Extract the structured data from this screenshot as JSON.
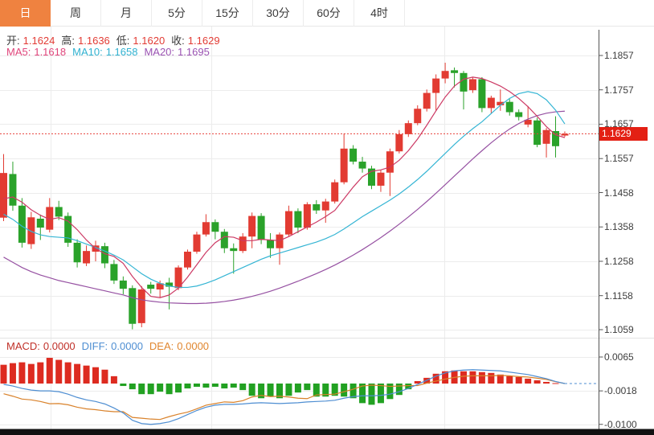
{
  "tabs": {
    "items": [
      {
        "label": "日",
        "active": true
      },
      {
        "label": "周",
        "active": false
      },
      {
        "label": "月",
        "active": false
      },
      {
        "label": "5分",
        "active": false
      },
      {
        "label": "15分",
        "active": false
      },
      {
        "label": "30分",
        "active": false
      },
      {
        "label": "60分",
        "active": false
      },
      {
        "label": "4时",
        "active": false
      }
    ],
    "active_bg": "#ef8240"
  },
  "ohlc_info": {
    "label_color": "#3a3a3a",
    "value_color": "#e23b34",
    "pairs": [
      {
        "label": "开:",
        "value": "1.1624"
      },
      {
        "label": "高:",
        "value": "1.1636"
      },
      {
        "label": "低:",
        "value": "1.1620"
      },
      {
        "label": "收:",
        "value": "1.1629"
      }
    ]
  },
  "ma_info": [
    {
      "label": "MA5:",
      "value": "1.1618",
      "color": "#e0457b"
    },
    {
      "label": "MA10:",
      "value": "1.1658",
      "color": "#2fb1d0"
    },
    {
      "label": "MA20:",
      "value": "1.1695",
      "color": "#9a52b2"
    }
  ],
  "macd_info": [
    {
      "label": "MACD:",
      "value": "0.0000",
      "color": "#c03028"
    },
    {
      "label": "DIFF:",
      "value": "0.0000",
      "color": "#4e8ed2"
    },
    {
      "label": "DEA:",
      "value": "0.0000",
      "color": "#e0862f"
    }
  ],
  "current_price": {
    "value": "1.1629",
    "box_color": "#e32014",
    "line_color": "#e8413a"
  },
  "price_axis": {
    "ticks": [
      {
        "label": "1.1857",
        "price": 1.1857
      },
      {
        "label": "1.1757",
        "price": 1.1757
      },
      {
        "label": "1.1657",
        "price": 1.1657
      },
      {
        "label": "1.1557",
        "price": 1.1557
      },
      {
        "label": "1.1458",
        "price": 1.1458
      },
      {
        "label": "1.1358",
        "price": 1.1358
      },
      {
        "label": "1.1258",
        "price": 1.1258
      },
      {
        "label": "1.1158",
        "price": 1.1158
      },
      {
        "label": "1.1059",
        "price": 1.1059
      }
    ]
  },
  "macd_axis": {
    "ticks": [
      {
        "label": "0.0065",
        "value": 0.0065
      },
      {
        "label": "-0.0018",
        "value": -0.0018
      },
      {
        "label": "-0.0100",
        "value": -0.01
      }
    ]
  },
  "colors": {
    "up": "#e23b32",
    "down": "#2aa22a",
    "ma5": "#cc3964",
    "ma10": "#35b5d4",
    "ma20": "#9651a2",
    "hist_pos": "#dd2b20",
    "hist_neg": "#22a122",
    "diff_line": "#4e8ed2",
    "dea_line": "#d9822b",
    "grid": "#ececec",
    "axis": "#555555",
    "bottom_strip": "#111111"
  },
  "chart_data": {
    "type": "candlestick",
    "instrument_note": "daily candles with MA5/MA10/MA20 overlay and MACD(12,26,9) sub-chart",
    "price_range": [
      1.1059,
      1.1857
    ],
    "macd_range": [
      -0.01,
      0.0065
    ],
    "last_ohlc": {
      "open": 1.1624,
      "high": 1.1636,
      "low": 1.162,
      "close": 1.1629
    },
    "ma_last": {
      "ma5": 1.1618,
      "ma10": 1.1658,
      "ma20": 1.1695
    },
    "macd_last": {
      "macd": 0.0,
      "diff": 0.0,
      "dea": 0.0
    },
    "candles_ohlc": [
      [
        1.1385,
        1.157,
        1.1375,
        1.1515
      ],
      [
        1.1512,
        1.1548,
        1.1405,
        1.142
      ],
      [
        1.142,
        1.1442,
        1.1298,
        1.1312
      ],
      [
        1.1308,
        1.1402,
        1.1294,
        1.1386
      ],
      [
        1.1382,
        1.1394,
        1.132,
        1.1356
      ],
      [
        1.135,
        1.1442,
        1.1342,
        1.1416
      ],
      [
        1.1416,
        1.1434,
        1.1378,
        1.1388
      ],
      [
        1.139,
        1.14,
        1.13,
        1.1312
      ],
      [
        1.1312,
        1.1322,
        1.124,
        1.1255
      ],
      [
        1.1252,
        1.1304,
        1.1244,
        1.1288
      ],
      [
        1.1286,
        1.1318,
        1.1258,
        1.1304
      ],
      [
        1.1302,
        1.1312,
        1.1238,
        1.1252
      ],
      [
        1.125,
        1.1262,
        1.1192,
        1.1202
      ],
      [
        1.1202,
        1.1214,
        1.1162,
        1.1178
      ],
      [
        1.118,
        1.1188,
        1.106,
        1.1076
      ],
      [
        1.1078,
        1.1186,
        1.1066,
        1.1176
      ],
      [
        1.119,
        1.1198,
        1.1164,
        1.1178
      ],
      [
        1.1176,
        1.1202,
        1.1152,
        1.1194
      ],
      [
        1.1196,
        1.121,
        1.1118,
        1.1184
      ],
      [
        1.118,
        1.1246,
        1.1174,
        1.124
      ],
      [
        1.124,
        1.1292,
        1.1234,
        1.1286
      ],
      [
        1.1286,
        1.1344,
        1.128,
        1.1336
      ],
      [
        1.1336,
        1.1395,
        1.133,
        1.1372
      ],
      [
        1.1372,
        1.138,
        1.1322,
        1.1344
      ],
      [
        1.1344,
        1.1352,
        1.1282,
        1.1296
      ],
      [
        1.1296,
        1.131,
        1.1222,
        1.1288
      ],
      [
        1.1288,
        1.134,
        1.1282,
        1.133
      ],
      [
        1.133,
        1.14,
        1.1296,
        1.139
      ],
      [
        1.139,
        1.1398,
        1.1308,
        1.132
      ],
      [
        1.132,
        1.134,
        1.1268,
        1.1296
      ],
      [
        1.1296,
        1.1342,
        1.1248,
        1.1336
      ],
      [
        1.1336,
        1.142,
        1.133,
        1.1404
      ],
      [
        1.1404,
        1.1412,
        1.134,
        1.1356
      ],
      [
        1.1356,
        1.143,
        1.135,
        1.1424
      ],
      [
        1.1424,
        1.1436,
        1.1396,
        1.1406
      ],
      [
        1.1406,
        1.144,
        1.137,
        1.1432
      ],
      [
        1.1432,
        1.1496,
        1.1426,
        1.1488
      ],
      [
        1.1488,
        1.163,
        1.1482,
        1.1586
      ],
      [
        1.1586,
        1.1596,
        1.154,
        1.1548
      ],
      [
        1.1548,
        1.1562,
        1.1516,
        1.1528
      ],
      [
        1.1528,
        1.1536,
        1.1468,
        1.1478
      ],
      [
        1.1478,
        1.1524,
        1.146,
        1.1516
      ],
      [
        1.1516,
        1.1586,
        1.1448,
        1.1578
      ],
      [
        1.1578,
        1.164,
        1.1572,
        1.1628
      ],
      [
        1.1628,
        1.1668,
        1.162,
        1.166
      ],
      [
        1.166,
        1.1712,
        1.1654,
        1.1702
      ],
      [
        1.1702,
        1.1758,
        1.1694,
        1.1748
      ],
      [
        1.1748,
        1.1802,
        1.1696,
        1.179
      ],
      [
        1.179,
        1.1836,
        1.1776,
        1.1812
      ],
      [
        1.1814,
        1.1822,
        1.1764,
        1.1806
      ],
      [
        1.1806,
        1.1812,
        1.17,
        1.1752
      ],
      [
        1.1756,
        1.1794,
        1.1748,
        1.1788
      ],
      [
        1.1788,
        1.1794,
        1.1692,
        1.1704
      ],
      [
        1.1704,
        1.174,
        1.1688,
        1.1734
      ],
      [
        1.1712,
        1.1758,
        1.1696,
        1.1722
      ],
      [
        1.1722,
        1.173,
        1.1682,
        1.1692
      ],
      [
        1.1692,
        1.17,
        1.1668,
        1.1678
      ],
      [
        1.1656,
        1.171,
        1.1648,
        1.167
      ],
      [
        1.1668,
        1.1676,
        1.159,
        1.1597
      ],
      [
        1.16,
        1.1646,
        1.156,
        1.164
      ],
      [
        1.1637,
        1.168,
        1.156,
        1.1593
      ],
      [
        1.1624,
        1.1636,
        1.162,
        1.1629
      ]
    ],
    "ma5": [
      1.144,
      1.1445,
      1.143,
      1.1408,
      1.1392,
      1.138,
      1.1385,
      1.1375,
      1.135,
      1.132,
      1.1295,
      1.128,
      1.1272,
      1.1252,
      1.1214,
      1.1182,
      1.1156,
      1.1152,
      1.116,
      1.118,
      1.1212,
      1.1248,
      1.1284,
      1.1312,
      1.133,
      1.1328,
      1.1318,
      1.1318,
      1.1322,
      1.132,
      1.1318,
      1.133,
      1.1344,
      1.1358,
      1.1372,
      1.1388,
      1.1406,
      1.144,
      1.1474,
      1.1504,
      1.152,
      1.1524,
      1.1532,
      1.1552,
      1.158,
      1.1614,
      1.1654,
      1.1696,
      1.1736,
      1.1768,
      1.1788,
      1.1794,
      1.179,
      1.178,
      1.1768,
      1.1752,
      1.1732,
      1.1708,
      1.168,
      1.165,
      1.1626,
      1.1618
    ],
    "ma10": [
      1.1395,
      1.138,
      1.136,
      1.1345,
      1.1335,
      1.133,
      1.1328,
      1.1326,
      1.1318,
      1.1308,
      1.1298,
      1.1288,
      1.1276,
      1.1262,
      1.1242,
      1.1222,
      1.1206,
      1.1194,
      1.1186,
      1.1182,
      1.1182,
      1.1186,
      1.1194,
      1.1204,
      1.1216,
      1.1228,
      1.124,
      1.1252,
      1.1264,
      1.1274,
      1.1282,
      1.129,
      1.1298,
      1.1306,
      1.1314,
      1.1324,
      1.1336,
      1.1352,
      1.137,
      1.1388,
      1.1404,
      1.142,
      1.1436,
      1.1454,
      1.1474,
      1.1496,
      1.152,
      1.1546,
      1.1572,
      1.1598,
      1.1622,
      1.1644,
      1.1664,
      1.1688,
      1.1712,
      1.1732,
      1.1746,
      1.1752,
      1.1746,
      1.1728,
      1.1698,
      1.1658
    ],
    "ma20": [
      1.127,
      1.1255,
      1.124,
      1.1228,
      1.1218,
      1.121,
      1.1202,
      1.1196,
      1.119,
      1.1184,
      1.1178,
      1.1172,
      1.1166,
      1.116,
      1.1152,
      1.1146,
      1.1142,
      1.1139,
      1.1137,
      1.1136,
      1.1135,
      1.1135,
      1.1136,
      1.1138,
      1.1141,
      1.1145,
      1.115,
      1.1156,
      1.1163,
      1.1171,
      1.118,
      1.119,
      1.12,
      1.1211,
      1.1222,
      1.1234,
      1.1247,
      1.1261,
      1.1276,
      1.1292,
      1.1309,
      1.1327,
      1.1346,
      1.1366,
      1.1387,
      1.1409,
      1.1432,
      1.1456,
      1.1481,
      1.1506,
      1.1531,
      1.1556,
      1.158,
      1.1603,
      1.1624,
      1.1643,
      1.1659,
      1.1672,
      1.1682,
      1.1689,
      1.1693,
      1.1695
    ],
    "macd_hist": [
      0.0046,
      0.005,
      0.0052,
      0.0048,
      0.0052,
      0.0063,
      0.0058,
      0.0052,
      0.0048,
      0.0044,
      0.004,
      0.0034,
      0.0018,
      -0.0006,
      -0.0014,
      -0.0026,
      -0.0026,
      -0.002,
      -0.0026,
      -0.0022,
      -0.0012,
      -0.0008,
      -0.001,
      -0.0008,
      -0.0012,
      -0.001,
      -0.0016,
      -0.003,
      -0.0036,
      -0.0032,
      -0.0036,
      -0.003,
      -0.0022,
      -0.0016,
      -0.0032,
      -0.0032,
      -0.003,
      -0.0032,
      -0.0036,
      -0.0048,
      -0.0052,
      -0.0048,
      -0.0038,
      -0.0028,
      -0.0014,
      0.0006,
      0.0014,
      0.0024,
      0.003,
      0.0032,
      0.003,
      0.003,
      0.0028,
      0.0026,
      0.0022,
      0.0018,
      0.0016,
      0.0012,
      0.0008,
      0.0004,
      0.0001,
      0.0
    ],
    "macd_diff": [
      -0.0002,
      -0.0006,
      -0.0012,
      -0.0016,
      -0.0018,
      -0.0018,
      -0.002,
      -0.0026,
      -0.0034,
      -0.004,
      -0.0044,
      -0.005,
      -0.006,
      -0.0072,
      -0.009,
      -0.0098,
      -0.01,
      -0.0098,
      -0.0094,
      -0.0086,
      -0.0076,
      -0.0066,
      -0.0058,
      -0.0053,
      -0.0051,
      -0.0051,
      -0.005,
      -0.0048,
      -0.0047,
      -0.0048,
      -0.0049,
      -0.0048,
      -0.0047,
      -0.0045,
      -0.0044,
      -0.0043,
      -0.0041,
      -0.0036,
      -0.0032,
      -0.003,
      -0.003,
      -0.0029,
      -0.0026,
      -0.002,
      -0.0012,
      -0.0002,
      0.0008,
      0.0018,
      0.0026,
      0.0031,
      0.0033,
      0.0034,
      0.0033,
      0.0032,
      0.0031,
      0.0028,
      0.0025,
      0.0022,
      0.0017,
      0.0012,
      0.0005,
      0.0
    ]
  }
}
